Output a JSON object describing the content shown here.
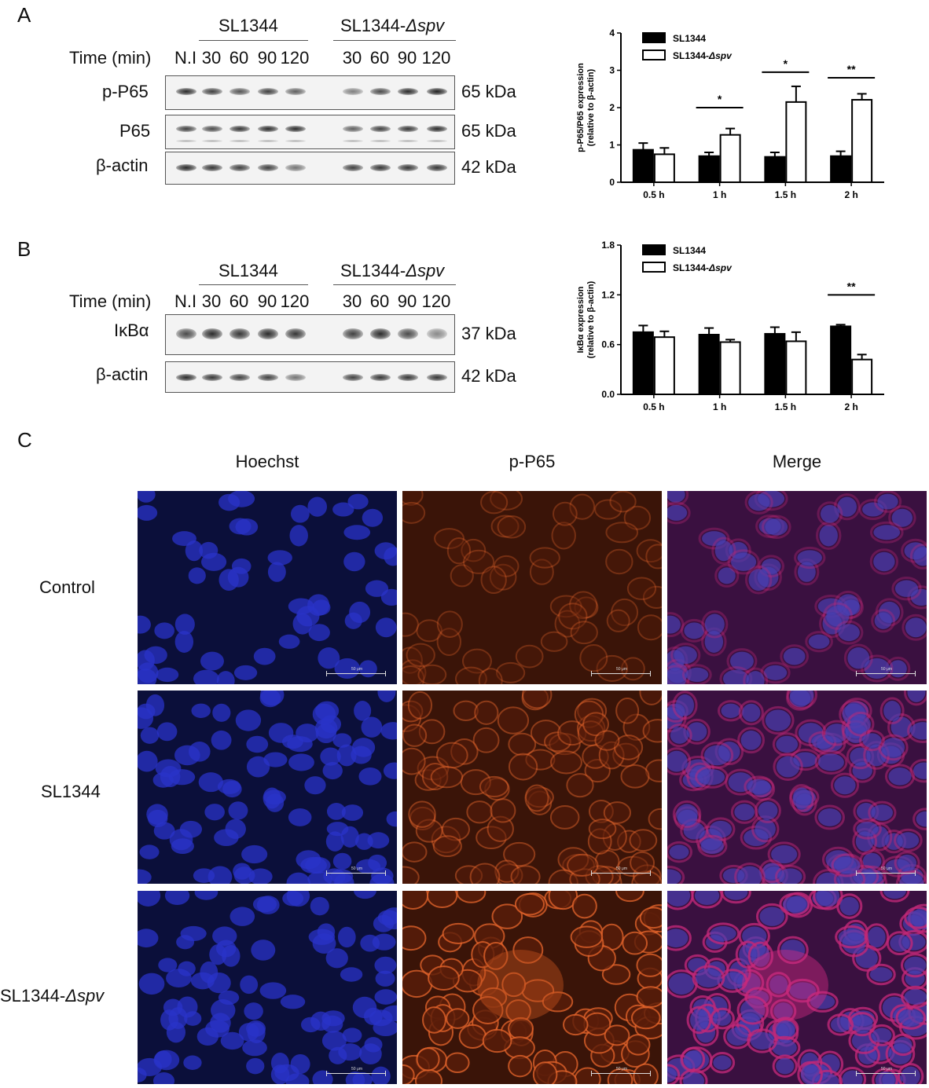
{
  "panel_a": {
    "letter": "A",
    "groups": {
      "wt": "SL1344",
      "mutant_prefix": "SL1344-",
      "mutant_italic": "Δspv"
    },
    "time_label": "Time (min)",
    "lanes": [
      "N.I",
      "30",
      "60",
      "90",
      "120",
      "30",
      "60",
      "90",
      "120"
    ],
    "blots": [
      {
        "label": "p-P65",
        "kda": "65 kDa"
      },
      {
        "label": "P65",
        "kda": "65 kDa"
      },
      {
        "label": "β-actin",
        "kda": "42 kDa"
      }
    ]
  },
  "panel_b": {
    "letter": "B",
    "groups": {
      "wt": "SL1344",
      "mutant_prefix": "SL1344-",
      "mutant_italic": "Δspv"
    },
    "time_label": "Time (min)",
    "lanes": [
      "N.I",
      "30",
      "60",
      "90",
      "120",
      "30",
      "60",
      "90",
      "120"
    ],
    "blots": [
      {
        "label": "IκBα",
        "kda": "37 kDa"
      },
      {
        "label": "β-actin",
        "kda": "42 kDa"
      }
    ]
  },
  "panel_c": {
    "letter": "C",
    "columns": [
      "Hoechst",
      "p-P65",
      "Merge"
    ],
    "rows": [
      "Control",
      "SL1344",
      "SL1344-Δspv"
    ],
    "row3_prefix": "SL1344-",
    "row3_italic": "Δspv",
    "scale_label": "50 μm"
  },
  "chart_data": [
    {
      "type": "bar",
      "panel": "A",
      "categories": [
        "0.5 h",
        "1 h",
        "1.5 h",
        "2 h"
      ],
      "series": [
        {
          "name": "SL1344",
          "values": [
            0.87,
            0.7,
            0.68,
            0.7
          ],
          "errors": [
            0.18,
            0.1,
            0.12,
            0.13
          ],
          "fill": "#000000"
        },
        {
          "name": "SL1344-Δspv",
          "values": [
            0.75,
            1.27,
            2.15,
            2.21
          ],
          "errors": [
            0.17,
            0.17,
            0.42,
            0.16
          ],
          "fill": "#ffffff"
        }
      ],
      "ylabel": [
        "p-P65/P65 expression",
        "(relative to β-actin)"
      ],
      "ylim": [
        0,
        4
      ],
      "yticks": [
        "0",
        "1",
        "2",
        "3",
        "4"
      ],
      "legend_position": "top-left",
      "significance": [
        {
          "category_index": 1,
          "label": "*"
        },
        {
          "category_index": 2,
          "label": "*"
        },
        {
          "category_index": 3,
          "label": "**"
        }
      ],
      "sig_levels": [
        2.0,
        2.95,
        2.8
      ]
    },
    {
      "type": "bar",
      "panel": "B",
      "categories": [
        "0.5 h",
        "1 h",
        "1.5 h",
        "2 h"
      ],
      "series": [
        {
          "name": "SL1344",
          "values": [
            0.75,
            0.72,
            0.73,
            0.82
          ],
          "errors": [
            0.08,
            0.08,
            0.08,
            0.02
          ],
          "fill": "#000000"
        },
        {
          "name": "SL1344-Δspv",
          "values": [
            0.69,
            0.63,
            0.64,
            0.42
          ],
          "errors": [
            0.07,
            0.03,
            0.11,
            0.06
          ],
          "fill": "#ffffff"
        }
      ],
      "ylabel": [
        "IκBα expression",
        "(relative to β-actin)"
      ],
      "ylim": [
        0,
        1.8
      ],
      "yticks": [
        "0.0",
        "0.6",
        "1.2",
        "1.8"
      ],
      "legend_position": "top-left",
      "significance": [
        {
          "category_index": 3,
          "label": "**"
        }
      ],
      "sig_levels": [
        1.2
      ]
    }
  ]
}
